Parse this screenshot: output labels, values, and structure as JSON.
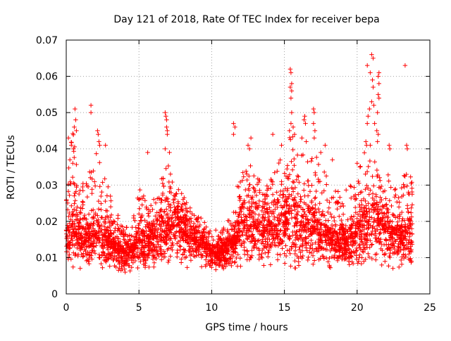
{
  "chart_data": {
    "type": "scatter",
    "title": "Day 121 of 2018, Rate Of TEC Index for receiver bepa",
    "xlabel": "GPS time / hours",
    "ylabel": "ROTI / TECUs",
    "xlim": [
      0,
      25
    ],
    "ylim": [
      0,
      0.07
    ],
    "x_ticks": [
      0,
      5,
      10,
      15,
      20,
      25
    ],
    "x_tick_labels": [
      "0",
      "5",
      "10",
      "15",
      "20",
      "25"
    ],
    "y_ticks": [
      0,
      0.01,
      0.02,
      0.03,
      0.04,
      0.05,
      0.06,
      0.07
    ],
    "y_tick_labels": [
      "0",
      "0.01",
      "0.02",
      "0.03",
      "0.04",
      "0.05",
      "0.06",
      "0.07"
    ],
    "grid": true,
    "marker": "+",
    "series_color": "#ff0000",
    "time_range_hours": [
      0,
      23.8
    ],
    "envelope": {
      "x": [
        0,
        0.5,
        1,
        1.5,
        2,
        2.5,
        3,
        3.5,
        4,
        4.5,
        5,
        5.5,
        6,
        6.5,
        7,
        7.5,
        8,
        8.5,
        9,
        9.5,
        10,
        10.5,
        11,
        11.5,
        12,
        12.5,
        13,
        13.5,
        14,
        14.5,
        15,
        15.5,
        16,
        16.5,
        17,
        17.5,
        18,
        18.5,
        19,
        19.5,
        20,
        20.5,
        21,
        21.5,
        22,
        22.5,
        23,
        23.5,
        23.8
      ],
      "low": [
        0.009,
        0.008,
        0.008,
        0.008,
        0.008,
        0.007,
        0.007,
        0.007,
        0.006,
        0.006,
        0.007,
        0.007,
        0.008,
        0.008,
        0.009,
        0.009,
        0.009,
        0.008,
        0.008,
        0.007,
        0.007,
        0.007,
        0.007,
        0.007,
        0.008,
        0.008,
        0.008,
        0.008,
        0.008,
        0.008,
        0.008,
        0.008,
        0.008,
        0.008,
        0.008,
        0.008,
        0.008,
        0.008,
        0.008,
        0.008,
        0.008,
        0.008,
        0.008,
        0.008,
        0.008,
        0.008,
        0.008,
        0.007,
        0.008
      ],
      "high": [
        0.04,
        0.045,
        0.03,
        0.032,
        0.04,
        0.034,
        0.028,
        0.022,
        0.02,
        0.02,
        0.03,
        0.028,
        0.026,
        0.032,
        0.036,
        0.03,
        0.028,
        0.024,
        0.022,
        0.02,
        0.018,
        0.018,
        0.02,
        0.024,
        0.038,
        0.036,
        0.034,
        0.03,
        0.032,
        0.036,
        0.04,
        0.045,
        0.042,
        0.036,
        0.04,
        0.036,
        0.032,
        0.03,
        0.028,
        0.03,
        0.036,
        0.04,
        0.042,
        0.038,
        0.034,
        0.032,
        0.03,
        0.036,
        0.032
      ],
      "mean": [
        0.015,
        0.017,
        0.015,
        0.015,
        0.016,
        0.015,
        0.013,
        0.012,
        0.011,
        0.011,
        0.014,
        0.014,
        0.015,
        0.016,
        0.018,
        0.018,
        0.017,
        0.015,
        0.014,
        0.013,
        0.011,
        0.011,
        0.012,
        0.013,
        0.017,
        0.018,
        0.018,
        0.017,
        0.017,
        0.018,
        0.019,
        0.02,
        0.019,
        0.017,
        0.017,
        0.016,
        0.015,
        0.014,
        0.014,
        0.014,
        0.016,
        0.018,
        0.02,
        0.019,
        0.017,
        0.016,
        0.015,
        0.016,
        0.016
      ]
    },
    "outliers": [
      {
        "x": 0.15,
        "y": 0.043
      },
      {
        "x": 0.35,
        "y": 0.041
      },
      {
        "x": 0.55,
        "y": 0.046
      },
      {
        "x": 0.6,
        "y": 0.051
      },
      {
        "x": 0.65,
        "y": 0.048
      },
      {
        "x": 0.7,
        "y": 0.045
      },
      {
        "x": 0.5,
        "y": 0.04
      },
      {
        "x": 0.25,
        "y": 0.037
      },
      {
        "x": 1.7,
        "y": 0.052
      },
      {
        "x": 1.7,
        "y": 0.05
      },
      {
        "x": 2.15,
        "y": 0.045
      },
      {
        "x": 2.2,
        "y": 0.044
      },
      {
        "x": 2.25,
        "y": 0.042
      },
      {
        "x": 2.3,
        "y": 0.041
      },
      {
        "x": 2.7,
        "y": 0.041
      },
      {
        "x": 5.6,
        "y": 0.039
      },
      {
        "x": 6.8,
        "y": 0.05
      },
      {
        "x": 6.85,
        "y": 0.049
      },
      {
        "x": 6.9,
        "y": 0.048
      },
      {
        "x": 6.9,
        "y": 0.046
      },
      {
        "x": 6.95,
        "y": 0.045
      },
      {
        "x": 6.95,
        "y": 0.044
      },
      {
        "x": 6.8,
        "y": 0.04
      },
      {
        "x": 7.1,
        "y": 0.039
      },
      {
        "x": 11.5,
        "y": 0.047
      },
      {
        "x": 11.6,
        "y": 0.046
      },
      {
        "x": 11.5,
        "y": 0.044
      },
      {
        "x": 12.5,
        "y": 0.041
      },
      {
        "x": 12.7,
        "y": 0.043
      },
      {
        "x": 12.6,
        "y": 0.04
      },
      {
        "x": 14.2,
        "y": 0.044
      },
      {
        "x": 14.8,
        "y": 0.041
      },
      {
        "x": 15.4,
        "y": 0.062
      },
      {
        "x": 15.45,
        "y": 0.061
      },
      {
        "x": 15.5,
        "y": 0.058
      },
      {
        "x": 15.4,
        "y": 0.057
      },
      {
        "x": 15.5,
        "y": 0.056
      },
      {
        "x": 15.45,
        "y": 0.054
      },
      {
        "x": 15.5,
        "y": 0.05
      },
      {
        "x": 15.45,
        "y": 0.047
      },
      {
        "x": 15.6,
        "y": 0.046
      },
      {
        "x": 15.7,
        "y": 0.044
      },
      {
        "x": 15.35,
        "y": 0.045
      },
      {
        "x": 16.4,
        "y": 0.049
      },
      {
        "x": 16.35,
        "y": 0.048
      },
      {
        "x": 16.45,
        "y": 0.047
      },
      {
        "x": 16.2,
        "y": 0.043
      },
      {
        "x": 16.5,
        "y": 0.042
      },
      {
        "x": 17.0,
        "y": 0.051
      },
      {
        "x": 17.05,
        "y": 0.05
      },
      {
        "x": 17.0,
        "y": 0.047
      },
      {
        "x": 17.1,
        "y": 0.045
      },
      {
        "x": 17.05,
        "y": 0.043
      },
      {
        "x": 17.5,
        "y": 0.039
      },
      {
        "x": 17.8,
        "y": 0.041
      },
      {
        "x": 18.3,
        "y": 0.037
      },
      {
        "x": 20.7,
        "y": 0.063
      },
      {
        "x": 21.0,
        "y": 0.066
      },
      {
        "x": 21.1,
        "y": 0.065
      },
      {
        "x": 20.9,
        "y": 0.061
      },
      {
        "x": 21.05,
        "y": 0.059
      },
      {
        "x": 21.1,
        "y": 0.057
      },
      {
        "x": 21.0,
        "y": 0.053
      },
      {
        "x": 21.15,
        "y": 0.052
      },
      {
        "x": 20.85,
        "y": 0.051
      },
      {
        "x": 20.7,
        "y": 0.047
      },
      {
        "x": 20.75,
        "y": 0.049
      },
      {
        "x": 21.2,
        "y": 0.047
      },
      {
        "x": 20.6,
        "y": 0.042
      },
      {
        "x": 20.65,
        "y": 0.041
      },
      {
        "x": 20.9,
        "y": 0.041
      },
      {
        "x": 21.5,
        "y": 0.061
      },
      {
        "x": 21.45,
        "y": 0.06
      },
      {
        "x": 21.5,
        "y": 0.058
      },
      {
        "x": 21.45,
        "y": 0.055
      },
      {
        "x": 21.5,
        "y": 0.054
      },
      {
        "x": 21.4,
        "y": 0.05
      },
      {
        "x": 21.35,
        "y": 0.045
      },
      {
        "x": 21.45,
        "y": 0.044
      },
      {
        "x": 21.4,
        "y": 0.042
      },
      {
        "x": 22.2,
        "y": 0.041
      },
      {
        "x": 22.25,
        "y": 0.04
      },
      {
        "x": 23.3,
        "y": 0.063
      },
      {
        "x": 23.4,
        "y": 0.041
      },
      {
        "x": 23.45,
        "y": 0.04
      },
      {
        "x": 20.0,
        "y": 0.036
      },
      {
        "x": 20.2,
        "y": 0.035
      }
    ]
  }
}
